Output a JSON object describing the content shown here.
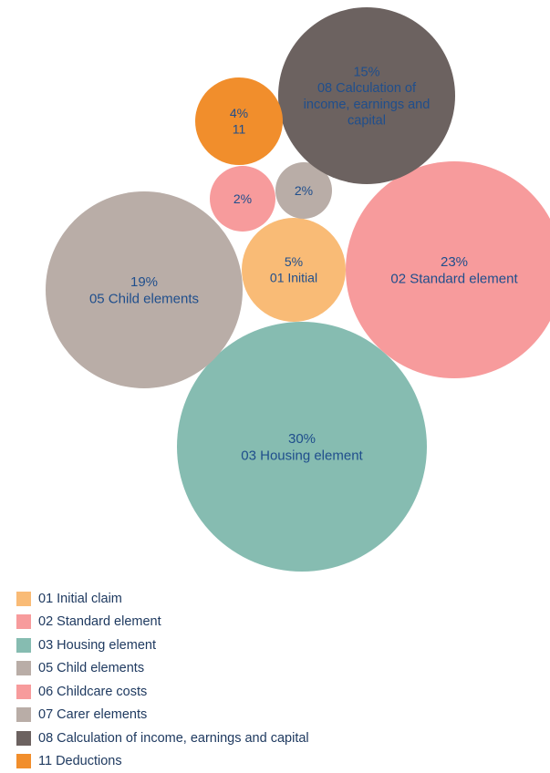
{
  "chart_data": {
    "type": "bubble",
    "title": "",
    "unit": "%",
    "bubbles": [
      {
        "category": "01 Initial claim",
        "value": 5,
        "value_label": "5%",
        "label": "01 Initial",
        "color": "#f9bb76"
      },
      {
        "category": "02 Standard element",
        "value": 23,
        "value_label": "23%",
        "label": "02 Standard element",
        "color": "#f79b9c"
      },
      {
        "category": "03 Housing element",
        "value": 30,
        "value_label": "30%",
        "label": "03 Housing element",
        "color": "#86bcb1"
      },
      {
        "category": "05 Child elements",
        "value": 19,
        "value_label": "19%",
        "label": "05 Child elements",
        "color": "#b9ada7"
      },
      {
        "category": "06 Childcare costs",
        "value": 2,
        "value_label": "2%",
        "label": "",
        "color": "#f79b9c"
      },
      {
        "category": "07 Carer elements",
        "value": 2,
        "value_label": "2%",
        "label": "",
        "color": "#b9ada7"
      },
      {
        "category": "08 Calculation of income, earnings and capital",
        "value": 15,
        "value_label": "15%",
        "label": "08 Calculation of income, earnings and capital",
        "label_lines": [
          "08 Calculation of",
          "income, earnings and",
          "capital"
        ],
        "color": "#6c6260"
      },
      {
        "category": "11 Deductions",
        "value": 4,
        "value_label": "4%",
        "label": "11",
        "color": "#f18e2c"
      }
    ],
    "legend": {
      "position": "bottom-left",
      "entries": [
        {
          "label": "01 Initial claim",
          "color": "#f9bb76"
        },
        {
          "label": "02 Standard element",
          "color": "#f79b9c"
        },
        {
          "label": "03 Housing element",
          "color": "#86bcb1"
        },
        {
          "label": "05 Child elements",
          "color": "#b9ada7"
        },
        {
          "label": "06 Childcare costs",
          "color": "#f79b9c"
        },
        {
          "label": "07 Carer elements",
          "color": "#b9ada7"
        },
        {
          "label": "08 Calculation of income, earnings and capital",
          "color": "#6c6260"
        },
        {
          "label": "11 Deductions",
          "color": "#f18e2c"
        }
      ]
    }
  }
}
